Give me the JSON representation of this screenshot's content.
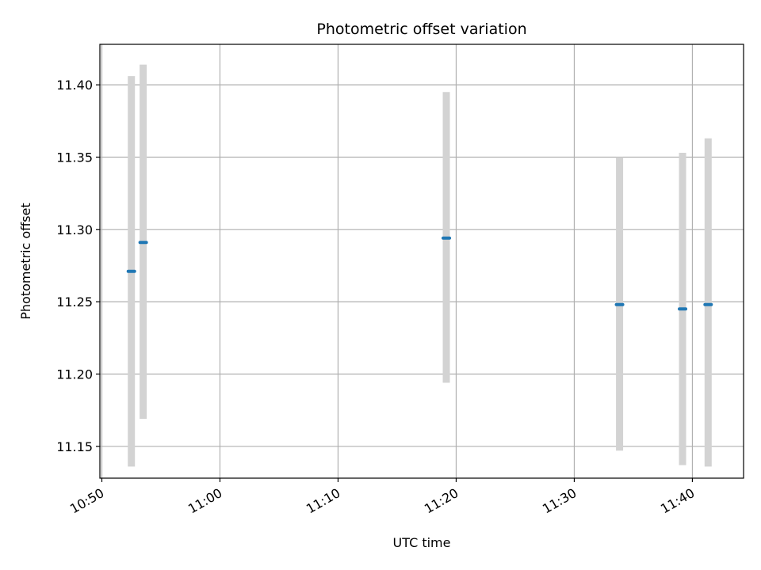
{
  "chart_data": {
    "type": "scatter",
    "title": "Photometric offset variation",
    "xlabel": "UTC time",
    "ylabel": "Photometric offset",
    "x_is_time": true,
    "xlim": [
      "10:49:50",
      "11:44:20"
    ],
    "ylim": [
      11.128,
      11.428
    ],
    "x_ticks": [
      "10:50",
      "11:00",
      "11:10",
      "11:20",
      "11:30",
      "11:40"
    ],
    "y_ticks": [
      "11.15",
      "11.20",
      "11.25",
      "11.30",
      "11.35",
      "11.40"
    ],
    "grid": true,
    "errorbar_color": "#d3d3d3",
    "marker_color": "#1f77b4",
    "points": [
      {
        "x": "10:52:30",
        "y": 11.271,
        "yerr_low": 11.136,
        "yerr_high": 11.406
      },
      {
        "x": "10:53:30",
        "y": 11.291,
        "yerr_low": 11.169,
        "yerr_high": 11.414
      },
      {
        "x": "11:19:10",
        "y": 11.294,
        "yerr_low": 11.194,
        "yerr_high": 11.395
      },
      {
        "x": "11:33:50",
        "y": 11.248,
        "yerr_low": 11.147,
        "yerr_high": 11.35
      },
      {
        "x": "11:39:10",
        "y": 11.245,
        "yerr_low": 11.137,
        "yerr_high": 11.353
      },
      {
        "x": "11:41:20",
        "y": 11.248,
        "yerr_low": 11.136,
        "yerr_high": 11.363
      }
    ]
  }
}
